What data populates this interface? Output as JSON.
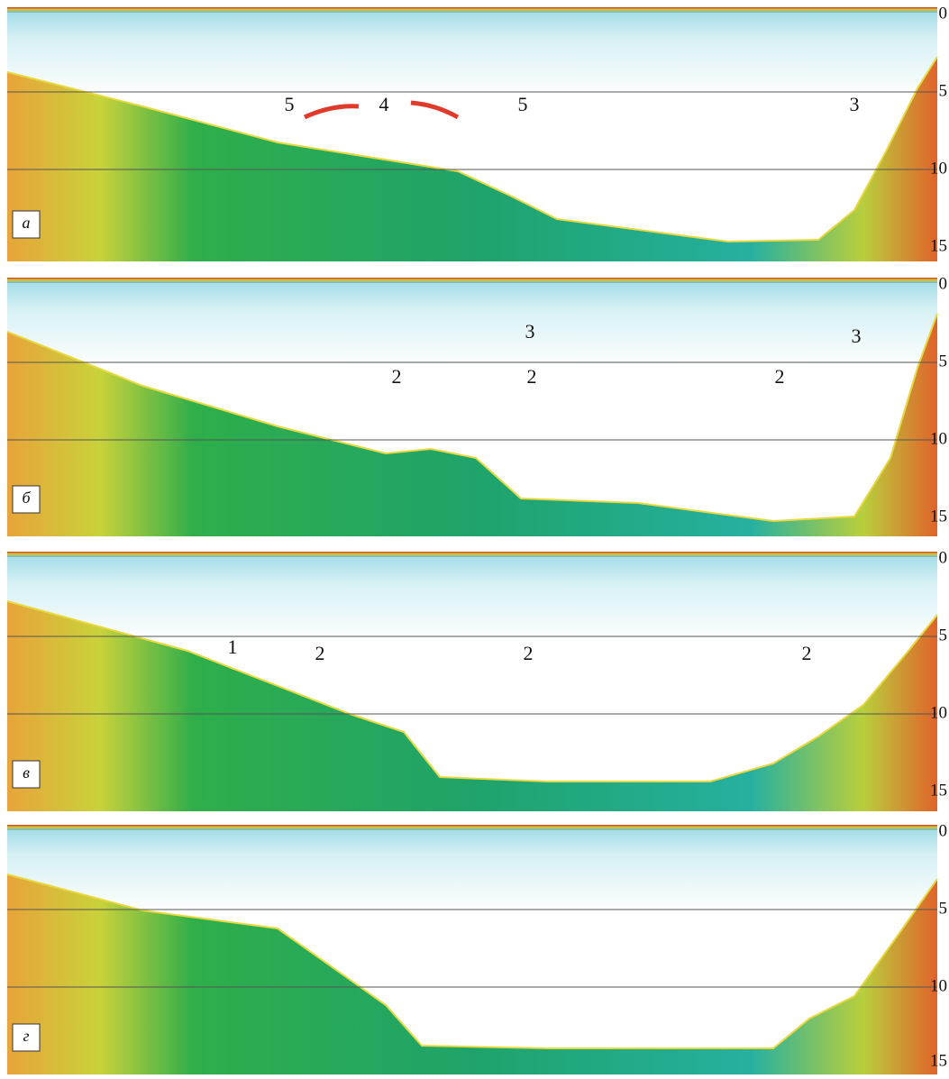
{
  "panels": [
    {
      "label": "а",
      "depth_ticks": [
        0,
        5,
        10,
        15
      ],
      "annotations": [
        "5",
        "4",
        "5",
        "3"
      ]
    },
    {
      "label": "б",
      "depth_ticks": [
        0,
        5,
        10,
        15
      ],
      "annotations": [
        "3",
        "3",
        "2",
        "2",
        "2"
      ]
    },
    {
      "label": "в",
      "depth_ticks": [
        0,
        5,
        10,
        15
      ],
      "annotations": [
        "1",
        "2",
        "2",
        "2"
      ]
    },
    {
      "label": "г",
      "depth_ticks": [
        0,
        5,
        10,
        15
      ],
      "annotations": []
    }
  ]
}
